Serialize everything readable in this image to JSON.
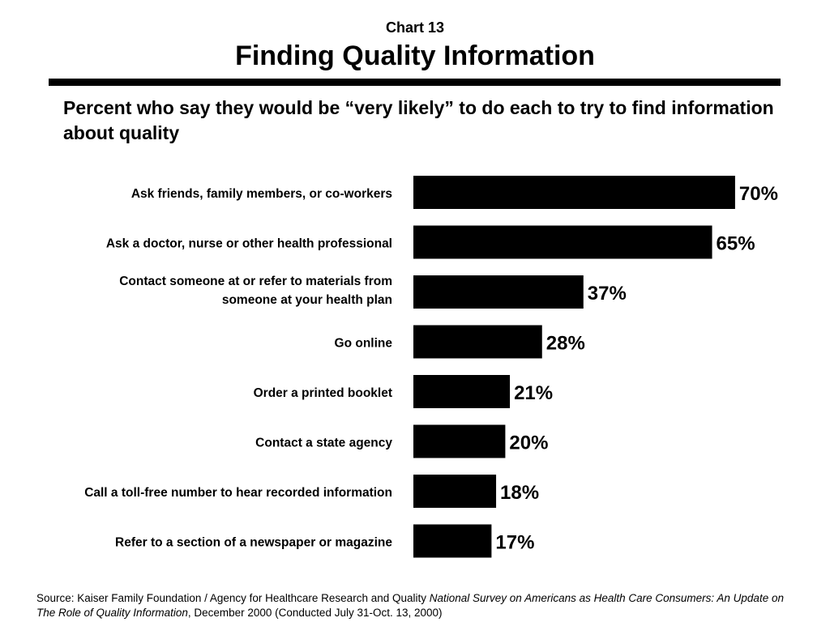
{
  "header": {
    "chart_number": "Chart 13",
    "title": "Finding Quality Information"
  },
  "subtitle": "Percent who say they would be “very likely” to do each to try to find information about quality",
  "source": {
    "prefix": "Source: Kaiser Family Foundation / Agency for Healthcare Research and Quality ",
    "publication": "National Survey on Americans as Health Care Consumers:  An Update on The Role of Quality Information",
    "suffix": ", December 2000 (Conducted July 31-Oct. 13, 2000)"
  },
  "colors": {
    "bar": "#000000",
    "background": "#ffffff",
    "text": "#000000"
  },
  "chart_data": {
    "type": "bar",
    "orientation": "horizontal",
    "categories": [
      [
        "Ask friends, family members, or co-workers"
      ],
      [
        "Ask a doctor, nurse or other health professional"
      ],
      [
        "Contact someone at or refer to materials from",
        "someone at your health plan"
      ],
      [
        "Go online"
      ],
      [
        "Order a printed booklet"
      ],
      [
        "Contact a state agency"
      ],
      [
        "Call a toll-free number to hear recorded information"
      ],
      [
        "Refer to a section of a newspaper or magazine"
      ]
    ],
    "values": [
      70,
      65,
      37,
      28,
      21,
      20,
      18,
      17
    ],
    "value_labels": [
      "70%",
      "65%",
      "37%",
      "28%",
      "21%",
      "20%",
      "18%",
      "17%"
    ],
    "xlim": [
      0,
      100
    ],
    "grid": false,
    "legend": "none"
  }
}
